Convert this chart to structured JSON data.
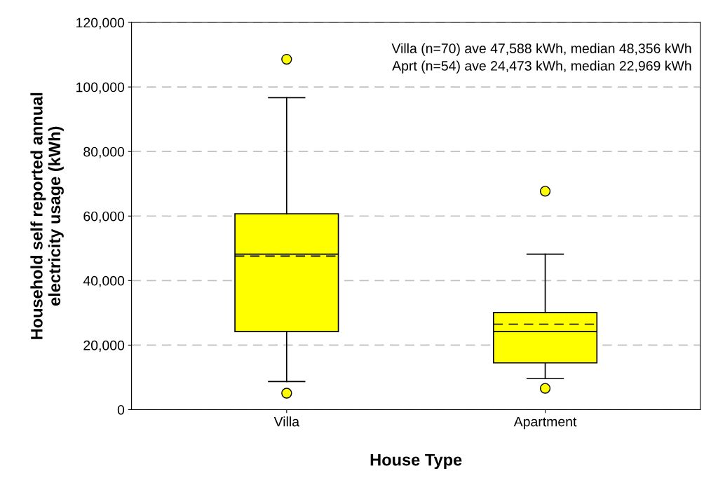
{
  "chart_data": {
    "type": "box",
    "xlabel": "House Type",
    "ylabel": "Household self reported annual\nelectricity usage (kWh)",
    "categories": [
      "Villa",
      "Apartment"
    ],
    "boxes": [
      {
        "low": 8700,
        "q1": 24200,
        "median": 48200,
        "q3": 60700,
        "high": 96700,
        "mean": 47600,
        "outliers": [
          108600,
          5100
        ]
      },
      {
        "low": 9600,
        "q1": 14500,
        "median": 24200,
        "q3": 30100,
        "high": 48200,
        "mean": 26500,
        "outliers": [
          67700,
          6600
        ]
      }
    ],
    "color": "#ffff00",
    "ylim": [
      0,
      120000
    ],
    "yticks": [
      {
        "value": 0,
        "label": "0"
      },
      {
        "value": 20000,
        "label": "20,000"
      },
      {
        "value": 40000,
        "label": "40,000"
      },
      {
        "value": 60000,
        "label": "60,000"
      },
      {
        "value": 80000,
        "label": "80,000"
      },
      {
        "value": 100000,
        "label": "100,000"
      },
      {
        "value": 120000,
        "label": "120,000"
      }
    ],
    "grid": "y",
    "annotations": [
      "Villa (n=70) ave 47,588 kWh, median 48,356 kWh",
      "Aprt (n=54) ave 24,473 kWh, median 22,969 kWh"
    ]
  }
}
